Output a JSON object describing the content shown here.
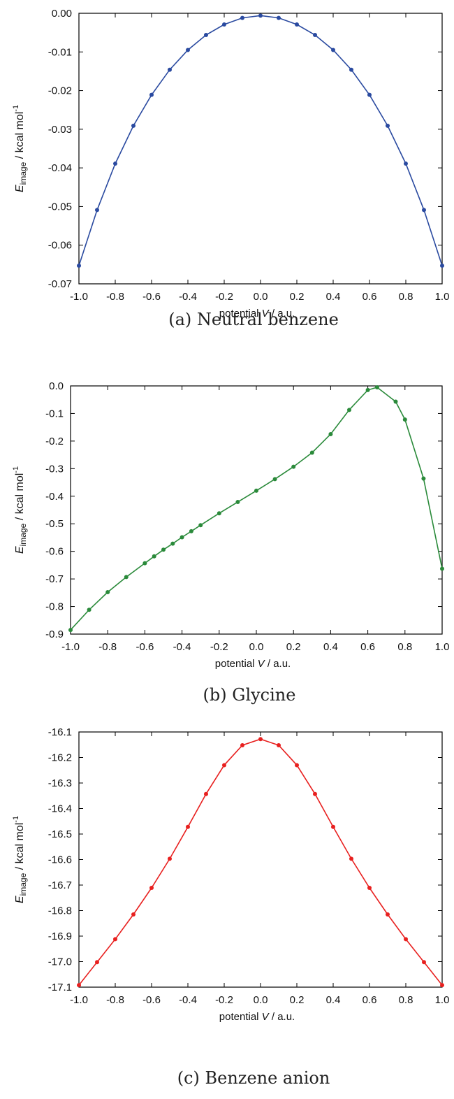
{
  "chart_data": [
    {
      "type": "line",
      "caption": "(a) Neutral benzene",
      "xlabel": {
        "prefix": "potential ",
        "var": "V",
        "suffix": " / a.u."
      },
      "ylabel": {
        "var": "E",
        "sub": "image",
        "unit": " / kcal mol",
        "sup": "-1"
      },
      "xlim": [
        -1.0,
        1.0
      ],
      "ylim": [
        -0.07,
        0.0
      ],
      "xticks": [
        "-1.0",
        "-0.8",
        "-0.6",
        "-0.4",
        "-0.2",
        "0.0",
        "0.2",
        "0.4",
        "0.6",
        "0.8",
        "1.0"
      ],
      "yticks": [
        "0.00",
        "-0.01",
        "-0.02",
        "-0.03",
        "-0.04",
        "-0.05",
        "-0.06",
        "-0.07"
      ],
      "grid": false,
      "color": "#2a4aa0",
      "x": [
        -1.0,
        -0.9,
        -0.8,
        -0.7,
        -0.6,
        -0.5,
        -0.4,
        -0.3,
        -0.2,
        -0.1,
        0.0,
        0.1,
        0.2,
        0.3,
        0.4,
        0.5,
        0.6,
        0.7,
        0.8,
        0.9,
        1.0
      ],
      "y": [
        -0.0653,
        -0.0509,
        -0.0389,
        -0.0291,
        -0.0211,
        -0.0146,
        -0.0095,
        -0.0056,
        -0.0029,
        -0.0012,
        -0.0006,
        -0.0012,
        -0.0029,
        -0.0056,
        -0.0095,
        -0.0146,
        -0.0211,
        -0.0291,
        -0.0389,
        -0.0509,
        -0.0653
      ]
    },
    {
      "type": "line",
      "caption": "(b) Glycine",
      "xlabel": {
        "prefix": "potential ",
        "var": "V",
        "suffix": " / a.u."
      },
      "ylabel": {
        "var": "E",
        "sub": "image",
        "unit": " / kcal mol",
        "sup": "-1"
      },
      "xlim": [
        -1.0,
        1.0
      ],
      "ylim": [
        -0.9,
        0.0
      ],
      "xticks": [
        "-1.0",
        "-0.8",
        "-0.6",
        "-0.4",
        "-0.2",
        "0.0",
        "0.2",
        "0.4",
        "0.6",
        "0.8",
        "1.0"
      ],
      "yticks": [
        "0.0",
        "-0.1",
        "-0.2",
        "-0.3",
        "-0.4",
        "-0.5",
        "-0.6",
        "-0.7",
        "-0.8",
        "-0.9"
      ],
      "grid": false,
      "color": "#2a8a3a",
      "x": [
        -1.0,
        -0.9,
        -0.8,
        -0.7,
        -0.6,
        -0.55,
        -0.5,
        -0.45,
        -0.4,
        -0.35,
        -0.3,
        -0.2,
        -0.1,
        0.0,
        0.1,
        0.2,
        0.3,
        0.4,
        0.5,
        0.6,
        0.65,
        0.75,
        0.8,
        0.9,
        1.0
      ],
      "y": [
        -0.885,
        -0.812,
        -0.748,
        -0.693,
        -0.643,
        -0.618,
        -0.594,
        -0.572,
        -0.549,
        -0.527,
        -0.505,
        -0.462,
        -0.421,
        -0.38,
        -0.338,
        -0.293,
        -0.242,
        -0.175,
        -0.087,
        -0.015,
        -0.005,
        -0.057,
        -0.122,
        -0.336,
        -0.663
      ]
    },
    {
      "type": "line",
      "caption": "(c) Benzene anion",
      "xlabel": {
        "prefix": "potential ",
        "var": "V",
        "suffix": " / a.u."
      },
      "ylabel": {
        "var": "E",
        "sub": "image",
        "unit": " / kcal mol",
        "sup": "-1"
      },
      "xlim": [
        -1.0,
        1.0
      ],
      "ylim": [
        -17.1,
        -16.1
      ],
      "xticks": [
        "-1.0",
        "-0.8",
        "-0.6",
        "-0.4",
        "-0.2",
        "0.0",
        "0.2",
        "0.4",
        "0.6",
        "0.8",
        "1.0"
      ],
      "yticks": [
        "-16.1",
        "-16.2",
        "-16.3",
        "-16.4",
        "-16.5",
        "-16.6",
        "-16.7",
        "-16.8",
        "-16.9",
        "-17.0",
        "-17.1"
      ],
      "grid": false,
      "color": "#e8201f",
      "x": [
        -1.0,
        -0.9,
        -0.8,
        -0.7,
        -0.6,
        -0.5,
        -0.4,
        -0.3,
        -0.2,
        -0.1,
        0.0,
        0.1,
        0.2,
        0.3,
        0.4,
        0.5,
        0.6,
        0.7,
        0.8,
        0.9,
        1.0
      ],
      "y": [
        -17.092,
        -17.002,
        -16.912,
        -16.815,
        -16.711,
        -16.597,
        -16.472,
        -16.343,
        -16.23,
        -16.152,
        -16.128,
        -16.152,
        -16.23,
        -16.343,
        -16.472,
        -16.597,
        -16.711,
        -16.815,
        -16.912,
        -17.002,
        -17.092
      ]
    }
  ]
}
